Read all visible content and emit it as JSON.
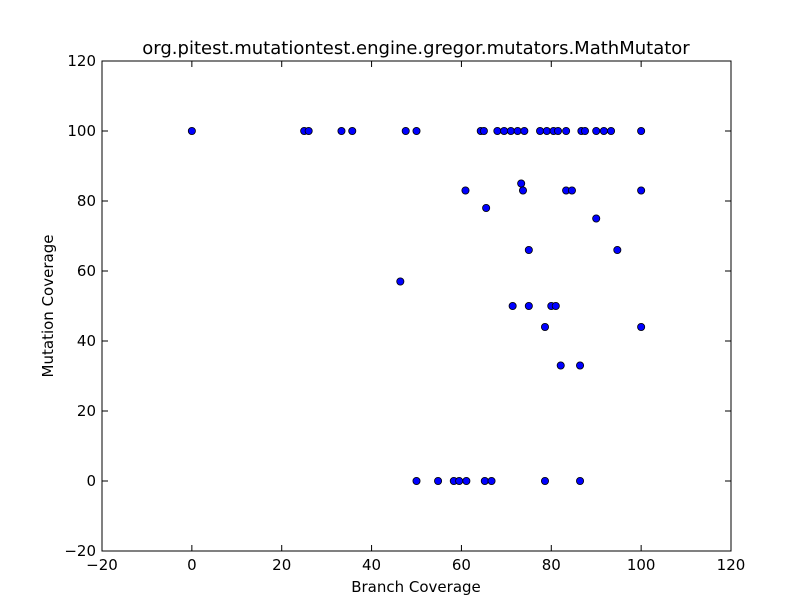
{
  "chart_data": {
    "type": "scatter",
    "title": "org.pitest.mutationtest.engine.gregor.mutators.MathMutator",
    "xlabel": "Branch Coverage",
    "ylabel": "Mutation Coverage",
    "xlim": [
      -20,
      120
    ],
    "ylim": [
      -20,
      120
    ],
    "xticks": [
      -20,
      0,
      20,
      40,
      60,
      80,
      100,
      120
    ],
    "yticks": [
      -20,
      0,
      20,
      40,
      60,
      80,
      100,
      120
    ],
    "xtick_labels": [
      "−20",
      "0",
      "20",
      "40",
      "60",
      "80",
      "100",
      "120"
    ],
    "ytick_labels": [
      "−20",
      "0",
      "20",
      "40",
      "60",
      "80",
      "100",
      "120"
    ],
    "grid": false,
    "marker_color": "#0000ff",
    "marker_edge": "#000000",
    "points": [
      [
        0,
        100
      ],
      [
        25,
        100
      ],
      [
        26,
        100
      ],
      [
        33.3,
        100
      ],
      [
        35.7,
        100
      ],
      [
        47.6,
        100
      ],
      [
        50,
        100
      ],
      [
        64.3,
        100
      ],
      [
        65,
        100
      ],
      [
        68,
        100
      ],
      [
        69.5,
        100
      ],
      [
        71,
        100
      ],
      [
        72.5,
        100
      ],
      [
        74,
        100
      ],
      [
        77.5,
        100
      ],
      [
        79,
        100
      ],
      [
        80.5,
        100
      ],
      [
        81.5,
        100
      ],
      [
        83.3,
        100
      ],
      [
        86.7,
        100
      ],
      [
        87.5,
        100
      ],
      [
        90,
        100
      ],
      [
        91.7,
        100
      ],
      [
        93.3,
        100
      ],
      [
        100,
        100
      ],
      [
        60.9,
        83
      ],
      [
        73.3,
        85
      ],
      [
        73.7,
        83
      ],
      [
        83.3,
        83
      ],
      [
        84.6,
        83
      ],
      [
        100,
        83
      ],
      [
        65.5,
        78
      ],
      [
        90,
        75
      ],
      [
        75,
        66
      ],
      [
        94.7,
        66
      ],
      [
        46.4,
        57
      ],
      [
        71.4,
        50
      ],
      [
        75,
        50
      ],
      [
        80,
        50
      ],
      [
        81,
        50
      ],
      [
        78.6,
        44
      ],
      [
        100,
        44
      ],
      [
        82.1,
        33
      ],
      [
        86.4,
        33
      ],
      [
        50,
        0
      ],
      [
        54.8,
        0
      ],
      [
        58.3,
        0
      ],
      [
        59.5,
        0
      ],
      [
        61.1,
        0
      ],
      [
        65.2,
        0
      ],
      [
        66.7,
        0
      ],
      [
        78.6,
        0
      ],
      [
        86.4,
        0
      ]
    ]
  }
}
